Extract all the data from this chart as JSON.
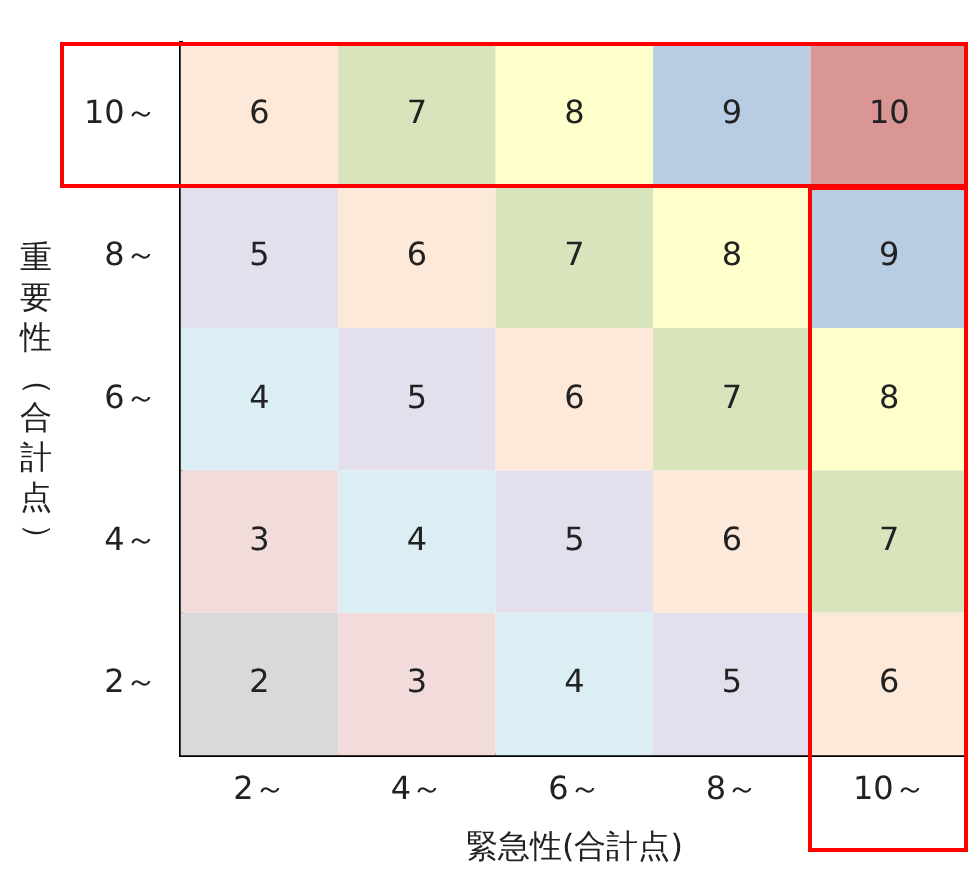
{
  "chart_data": {
    "type": "heatmap",
    "xlabel": "緊急性(合計点)",
    "ylabel": "重要性（合計点）",
    "categories": [
      "2～",
      "4～",
      "6～",
      "8～",
      "10～"
    ],
    "y_categories": [
      "10～",
      "8～",
      "6～",
      "4～",
      "2～"
    ],
    "cells": [
      [
        6,
        7,
        8,
        9,
        10
      ],
      [
        5,
        6,
        7,
        8,
        9
      ],
      [
        4,
        5,
        6,
        7,
        8
      ],
      [
        3,
        4,
        5,
        6,
        7
      ],
      [
        2,
        3,
        4,
        5,
        6
      ]
    ],
    "colors": [
      [
        "#fde9d9",
        "#d8e4bc",
        "#ffffcc",
        "#b8cce4",
        "#da9694"
      ],
      [
        "#e4dfec",
        "#fde9d9",
        "#d8e4bc",
        "#ffffcc",
        "#b8cce4"
      ],
      [
        "#daeef3",
        "#e4dfec",
        "#fde9d9",
        "#d8e4bc",
        "#ffffcc"
      ],
      [
        "#f2dcdb",
        "#daeef3",
        "#e4dfec",
        "#fde9d9",
        "#d8e4bc"
      ],
      [
        "#d9d9d9",
        "#f2dcdb",
        "#daeef3",
        "#e4dfec",
        "#fde9d9"
      ]
    ],
    "data_labels": true,
    "grid": false
  }
}
